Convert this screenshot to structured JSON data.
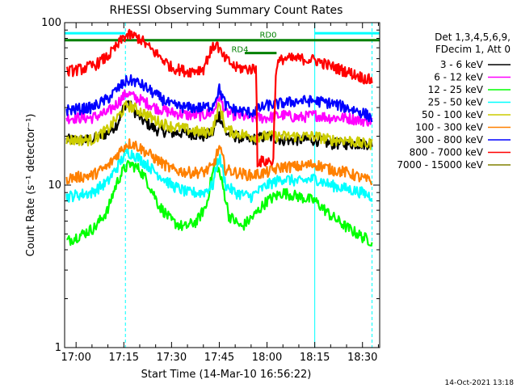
{
  "chart_data": {
    "type": "line",
    "title": "RHESSI Observing Summary Count Rates",
    "xlabel": "Start Time (14-Mar-10 16:56:22)",
    "ylabel": "Count Rate (s⁻¹ detector⁻¹)",
    "yscale": "log",
    "xlim_minutes_of_day": [
      1016.4,
      1115.4
    ],
    "ylim": [
      1,
      100
    ],
    "x_ticks": [
      {
        "m": 1020,
        "label": "17:00"
      },
      {
        "m": 1035,
        "label": "17:15"
      },
      {
        "m": 1050,
        "label": "17:30"
      },
      {
        "m": 1065,
        "label": "17:45"
      },
      {
        "m": 1080,
        "label": "18:00"
      },
      {
        "m": 1095,
        "label": "18:15"
      },
      {
        "m": 1110,
        "label": "18:30"
      }
    ],
    "y_ticks": [
      {
        "v": 1,
        "label": "1"
      },
      {
        "v": 10,
        "label": "10"
      },
      {
        "v": 100,
        "label": "100"
      }
    ],
    "legend_header": [
      "Det 1,3,4,5,6,9,",
      "FDecim 1, Att 0"
    ],
    "legend_placement": "right",
    "grid": false,
    "timestamp": "14-Oct-2021 13:18",
    "bars": [
      {
        "label": "RD0",
        "from": 1016.4,
        "to": 1115.4,
        "level": 78,
        "color": "#008000"
      },
      {
        "label": "RD4",
        "from": 1073.0,
        "to": 1083.0,
        "level": 65,
        "color": "#008000"
      }
    ],
    "cyan_flags": [
      {
        "from": 1016.4,
        "to": 1035.5,
        "level": 86,
        "color": "#00ffff"
      },
      {
        "from": 1095.0,
        "to": 1115.4,
        "level": 86,
        "color": "#00ffff"
      }
    ],
    "vertical_lines": [
      {
        "m": 1016.4,
        "style": "solid",
        "color": "#00ffff"
      },
      {
        "m": 1035.5,
        "style": "dashed",
        "color": "#00ffff"
      },
      {
        "m": 1095.0,
        "style": "solid",
        "color": "#00ffff"
      },
      {
        "m": 1113.0,
        "style": "dashed",
        "color": "#00ffff"
      }
    ],
    "series": [
      {
        "name": "3 - 6 keV",
        "color": "#000000",
        "x": [
          1017,
          1025,
          1030,
          1033,
          1036,
          1038,
          1041,
          1045,
          1050,
          1055,
          1060,
          1063,
          1065,
          1067,
          1070,
          1075,
          1080,
          1085,
          1090,
          1095,
          1100,
          1105,
          1110,
          1113
        ],
        "y": [
          19,
          19,
          21,
          24,
          33,
          29,
          25,
          22,
          21,
          21,
          20,
          21,
          27,
          21,
          20,
          19,
          20,
          19,
          19,
          19,
          18,
          18,
          18,
          18
        ]
      },
      {
        "name": "6 - 12 keV",
        "color": "#ff00ff",
        "x": [
          1017,
          1025,
          1030,
          1033,
          1036,
          1038,
          1041,
          1045,
          1050,
          1055,
          1060,
          1063,
          1065,
          1067,
          1070,
          1075,
          1080,
          1085,
          1090,
          1095,
          1100,
          1105,
          1110,
          1113
        ],
        "y": [
          26,
          26,
          28,
          32,
          37,
          35,
          33,
          30,
          28,
          27,
          27,
          28,
          35,
          28,
          27,
          26,
          26,
          27,
          26,
          27,
          26,
          26,
          25,
          25
        ]
      },
      {
        "name": "12 - 25 keV",
        "color": "#00ff00",
        "x": [
          1017,
          1022,
          1026,
          1030,
          1033,
          1035,
          1037,
          1040,
          1043,
          1046,
          1050,
          1054,
          1058,
          1061,
          1063,
          1064,
          1066,
          1068,
          1072,
          1076,
          1080,
          1085,
          1090,
          1095,
          1100,
          1105,
          1110,
          1113
        ],
        "y": [
          4.5,
          5.0,
          5.5,
          7.0,
          10.5,
          12.5,
          13.5,
          12.5,
          10.0,
          7.5,
          6.0,
          5.5,
          6.0,
          7.5,
          12.0,
          14.0,
          10.0,
          6.5,
          5.5,
          6.5,
          8.0,
          9.0,
          8.5,
          8.0,
          6.5,
          5.5,
          4.8,
          4.5
        ]
      },
      {
        "name": "25 - 50 keV",
        "color": "#00ffff",
        "x": [
          1017,
          1025,
          1030,
          1033,
          1036,
          1038,
          1041,
          1045,
          1050,
          1055,
          1060,
          1063,
          1065,
          1067,
          1070,
          1075,
          1080,
          1085,
          1090,
          1095,
          1100,
          1105,
          1110,
          1113
        ],
        "y": [
          8.5,
          9.0,
          10.5,
          13.0,
          16.0,
          15.5,
          14.0,
          12.0,
          10.0,
          9.0,
          9.0,
          10.0,
          15.0,
          10.0,
          9.0,
          8.5,
          10.0,
          11.0,
          10.5,
          11.0,
          10.0,
          9.5,
          9.0,
          8.5
        ]
      },
      {
        "name": "50 - 100 keV",
        "color": "#cccc00",
        "x": [
          1017,
          1025,
          1030,
          1033,
          1036,
          1038,
          1041,
          1045,
          1050,
          1055,
          1060,
          1063,
          1065,
          1067,
          1070,
          1075,
          1080,
          1085,
          1090,
          1095,
          1100,
          1105,
          1110,
          1113
        ],
        "y": [
          19,
          19,
          22,
          26,
          31,
          30,
          28,
          25,
          23,
          22,
          21,
          22,
          31,
          22,
          21,
          20,
          20,
          20,
          20,
          20,
          19,
          19,
          18,
          18
        ]
      },
      {
        "name": "100 - 300 keV",
        "color": "#ff8000",
        "x": [
          1017,
          1025,
          1030,
          1033,
          1036,
          1038,
          1041,
          1045,
          1050,
          1055,
          1060,
          1063,
          1065,
          1067,
          1070,
          1075,
          1080,
          1085,
          1090,
          1095,
          1100,
          1105,
          1110,
          1113
        ],
        "y": [
          11,
          11.5,
          13,
          15.5,
          18,
          18,
          16.5,
          14.5,
          12.5,
          12,
          12,
          13,
          17,
          12.5,
          12,
          11.5,
          12,
          13,
          13,
          13.5,
          12.5,
          12,
          11,
          10.5
        ]
      },
      {
        "name": "300 - 800 keV",
        "color": "#0000ff",
        "x": [
          1017,
          1025,
          1030,
          1033,
          1036,
          1038,
          1041,
          1045,
          1050,
          1055,
          1060,
          1063,
          1065,
          1067,
          1070,
          1075,
          1080,
          1085,
          1090,
          1095,
          1100,
          1105,
          1110,
          1113
        ],
        "y": [
          29,
          30,
          34,
          39,
          44,
          44,
          41,
          36,
          31,
          30,
          30,
          31,
          39,
          31,
          29,
          28,
          31,
          32,
          33,
          33,
          32,
          30,
          28,
          26
        ]
      },
      {
        "name": "800 - 7000 keV",
        "color": "#ff0000",
        "x": [
          1017,
          1022,
          1026,
          1030,
          1033,
          1035,
          1037,
          1040,
          1043,
          1047,
          1050,
          1055,
          1060,
          1062,
          1064,
          1066,
          1070,
          1074,
          1076.5,
          1077,
          1078,
          1082,
          1083,
          1085,
          1090,
          1095,
          1100,
          1105,
          1110,
          1113
        ],
        "y": [
          50,
          52,
          55,
          62,
          72,
          82,
          84,
          80,
          70,
          60,
          53,
          50,
          52,
          65,
          75,
          62,
          53,
          52,
          52,
          14,
          14,
          14,
          55,
          60,
          60,
          59,
          54,
          50,
          46,
          44
        ]
      },
      {
        "name": "7000 - 15000 keV",
        "color": "#808000",
        "x": [],
        "y": []
      }
    ]
  }
}
